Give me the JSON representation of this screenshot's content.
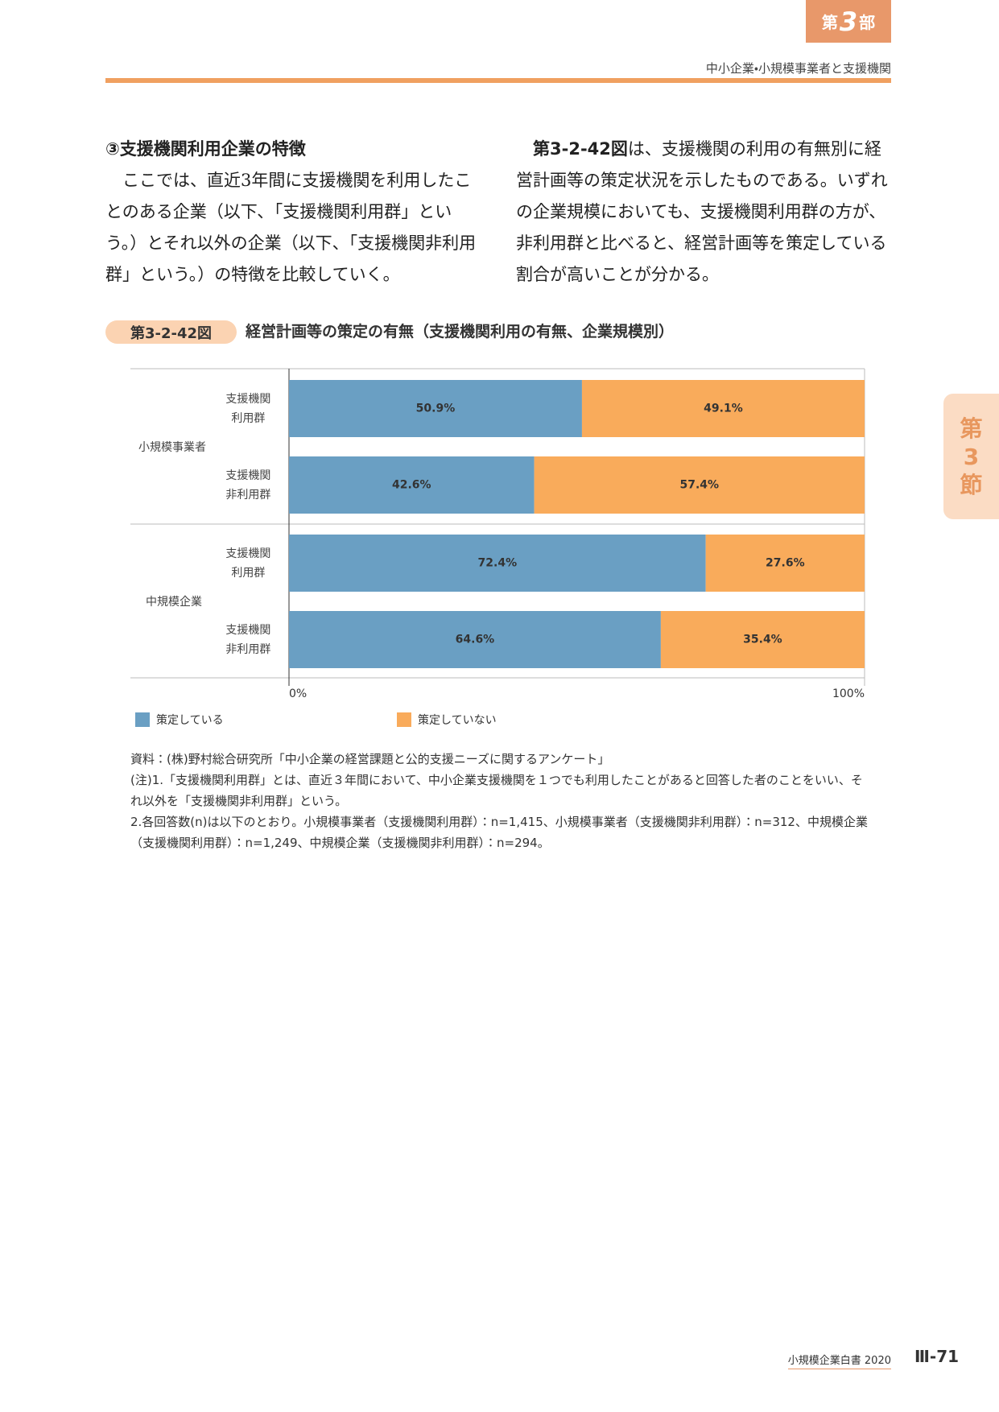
{
  "header": {
    "part_prefix": "第",
    "part_number": "3",
    "part_suffix": "部",
    "section": "中小企業・小規模事業者と支援機関"
  },
  "side_tab": {
    "prefix": "第",
    "number": "3",
    "suffix": "節"
  },
  "body": {
    "left": {
      "heading": "③支援機関利用企業の特徴",
      "paragraph": "ここでは、直近3年間に支援機関を利用したことのある企業（以下､「支援機関利用群」という。）とそれ以外の企業（以下、「支援機関非利用群」という。）の特徴を比較していく。"
    },
    "right": {
      "figure_ref": "第3-2-42図",
      "paragraph": "は、支援機関の利用の有無別に経営計画等の策定状況を示したものである。いずれの企業規模においても、支援機関利用群の方が、非利用群と比べると、経営計画等を策定している割合が高いことが分かる。"
    }
  },
  "figure": {
    "label": "第3-2-42図"
  },
  "chart_data": {
    "type": "stacked_barh",
    "title": "経営計画等の策定の有無（支援機関利用の有無、企業規模別）",
    "group_labels": [
      "小規模事業者",
      "中規模企業"
    ],
    "categories": [
      "支援機関利用群",
      "支援機関非利用群",
      "支援機関利用群",
      "支援機関非利用群"
    ],
    "series": [
      {
        "name": "策定している",
        "color": "#6a9fc3",
        "values": [
          50.9,
          42.6,
          72.4,
          64.6
        ],
        "value_labels": [
          "50.9%",
          "42.6%",
          "72.4%",
          "64.6%"
        ]
      },
      {
        "name": "策定していない",
        "color": "#f9ab5b",
        "values": [
          49.1,
          57.4,
          27.6,
          35.4
        ],
        "value_labels": [
          "49.1%",
          "57.4%",
          "27.6%",
          "35.4%"
        ]
      }
    ],
    "xlim": [
      0,
      100
    ],
    "xticks": [
      {
        "value": 0,
        "label": "0%"
      },
      {
        "value": 100,
        "label": "100%"
      }
    ]
  },
  "notes": [
    "資料：(株)野村総合研究所「中小企業の経営課題と公的支援ニーズに関するアンケート」",
    "(注)1.「支援機関利用群」とは、直近３年間において、中小企業支援機関を１つでも利用したことがあると回答した者のことをいい、それ以外を「支援機関非利用群」という。",
    "2.各回答数(n)は以下のとおり。小規模事業者（支援機関利用群）：n=1,415、小規模事業者（支援機関非利用群）：n=312、中規模企業（支援機関利用群）：n=1,249、中規模企業（支援機関非利用群）：n=294。"
  ],
  "footer": {
    "book": "小規模企業白書 2020",
    "page": "Ⅲ-71"
  }
}
